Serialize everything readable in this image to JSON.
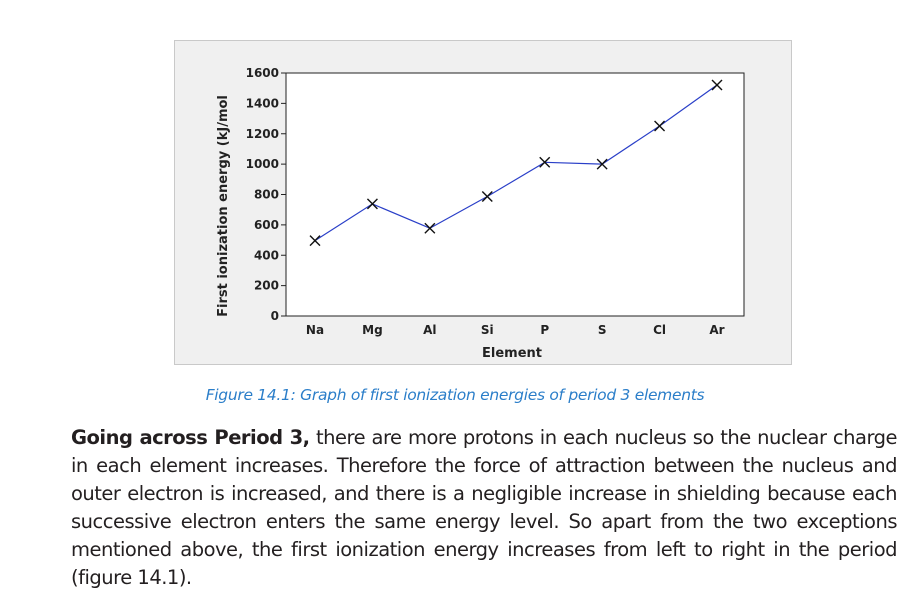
{
  "chart_data": {
    "type": "line",
    "categories": [
      "Na",
      "Mg",
      "Al",
      "Si",
      "P",
      "S",
      "Cl",
      "Ar"
    ],
    "series": [
      {
        "values": [
          496,
          738,
          578,
          787,
          1012,
          1000,
          1251,
          1521
        ]
      }
    ],
    "xlabel": "Element",
    "ylabel": "First ionization energy (kJ/mol",
    "y_ticks": [
      0,
      200,
      400,
      600,
      800,
      1000,
      1200,
      1400,
      1600
    ],
    "ylim": [
      0,
      1600
    ],
    "marker": "x",
    "grid": false,
    "line_color": "#2a3fc8",
    "marker_color": "#111111"
  },
  "caption": "Figure 14.1: Graph of first ionization energies of period 3 elements",
  "body": {
    "lead": "Going across Period 3,",
    "text": " there are more protons in each nucleus so the nuclear charge in each element increases. Therefore the force of attraction between the nucleus and outer electron is increased, and there is a negligible increase in shielding because each successive electron enters the same energy level. So apart from the two exceptions mentioned above, the first ionization energy increases from left to right in the period (figure 14.1)."
  }
}
